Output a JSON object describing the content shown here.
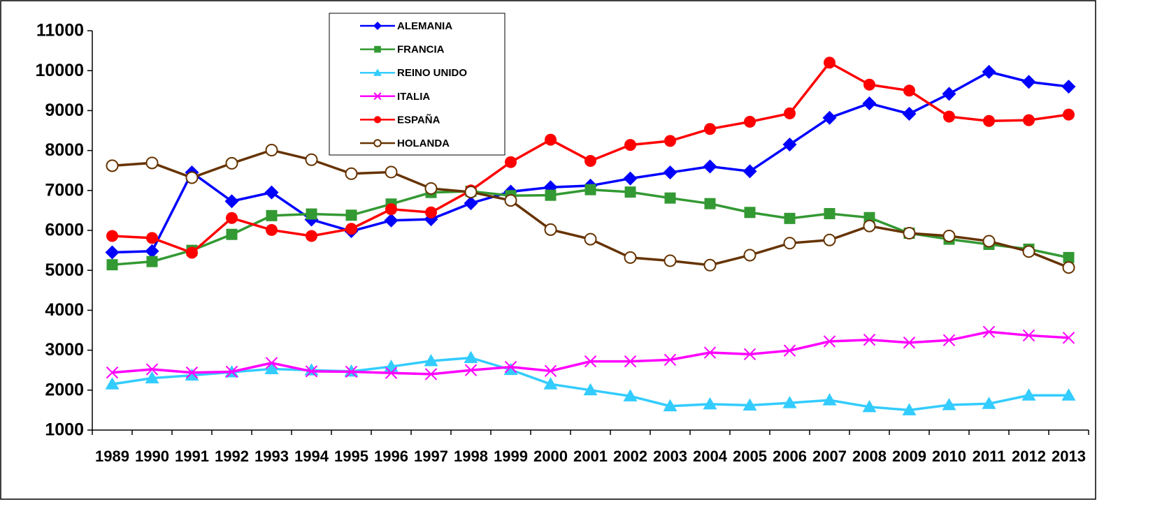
{
  "chart_data": {
    "type": "line",
    "categories": [
      "1989",
      "1990",
      "1991",
      "1992",
      "1993",
      "1994",
      "1995",
      "1996",
      "1997",
      "1998",
      "1999",
      "2000",
      "2001",
      "2002",
      "2003",
      "2004",
      "2005",
      "2006",
      "2007",
      "2008",
      "2009",
      "2010",
      "2011",
      "2012",
      "2013"
    ],
    "ylim": [
      1000,
      11000
    ],
    "yticks": [
      1000,
      2000,
      3000,
      4000,
      5000,
      6000,
      7000,
      8000,
      9000,
      10000,
      11000
    ],
    "legend": "top",
    "series": [
      {
        "name": "ALEMANIA",
        "color": "#0000ff",
        "marker": "diamond",
        "values": [
          5450,
          5480,
          7450,
          6730,
          6950,
          6270,
          5980,
          6250,
          6280,
          6680,
          6970,
          7080,
          7120,
          7300,
          7450,
          7600,
          7480,
          8150,
          8820,
          9180,
          8920,
          9420,
          9970,
          9720,
          9600
        ]
      },
      {
        "name": "FRANCIA",
        "color": "#339933",
        "marker": "square",
        "values": [
          5140,
          5220,
          5500,
          5900,
          6370,
          6410,
          6380,
          6660,
          6950,
          6980,
          6870,
          6880,
          7020,
          6960,
          6810,
          6670,
          6450,
          6300,
          6420,
          6320,
          5930,
          5780,
          5650,
          5530,
          5320
        ]
      },
      {
        "name": "REINO UNIDO",
        "color": "#33ccff",
        "marker": "triangle",
        "values": [
          2150,
          2300,
          2370,
          2450,
          2530,
          2500,
          2470,
          2590,
          2730,
          2810,
          2510,
          2150,
          2000,
          1850,
          1600,
          1650,
          1620,
          1680,
          1750,
          1580,
          1500,
          1630,
          1660,
          1870,
          1870
        ]
      },
      {
        "name": "ITALIA",
        "color": "#ff00ff",
        "marker": "x",
        "values": [
          2440,
          2520,
          2440,
          2460,
          2680,
          2470,
          2460,
          2430,
          2400,
          2500,
          2580,
          2480,
          2720,
          2720,
          2760,
          2940,
          2900,
          2990,
          3220,
          3260,
          3190,
          3250,
          3460,
          3370,
          3310
        ]
      },
      {
        "name": "ESPAÑA",
        "color": "#ff0000",
        "marker": "circle",
        "values": [
          5860,
          5810,
          5440,
          6310,
          6010,
          5860,
          6040,
          6530,
          6450,
          7000,
          7710,
          8270,
          7740,
          8140,
          8240,
          8540,
          8720,
          8930,
          10200,
          9650,
          9500,
          8850,
          8740,
          8760,
          8900
        ]
      },
      {
        "name": "HOLANDA",
        "color": "#663300",
        "marker": "open-circle",
        "values": [
          7620,
          7690,
          7320,
          7680,
          8010,
          7770,
          7420,
          7460,
          7050,
          6960,
          6750,
          6020,
          5780,
          5320,
          5240,
          5130,
          5380,
          5680,
          5760,
          6110,
          5930,
          5860,
          5730,
          5470,
          5070
        ]
      }
    ]
  }
}
